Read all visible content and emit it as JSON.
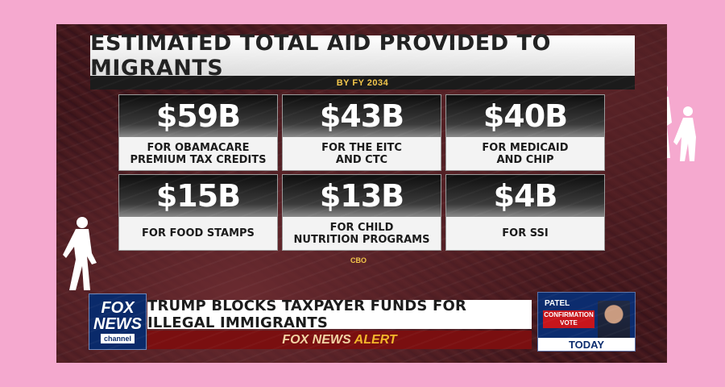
{
  "header": {
    "title": "ESTIMATED TOTAL AID PROVIDED TO MIGRANTS",
    "subtitle": "BY FY 2034"
  },
  "cards": [
    {
      "amount": "$59B",
      "label": "FOR OBAMACARE\nPREMIUM TAX CREDITS"
    },
    {
      "amount": "$43B",
      "label": "FOR THE EITC\nAND CTC"
    },
    {
      "amount": "$40B",
      "label": "FOR MEDICAID\nAND CHIP"
    },
    {
      "amount": "$15B",
      "label": "FOR FOOD STAMPS"
    },
    {
      "amount": "$13B",
      "label": "FOR CHILD\nNUTRITION PROGRAMS"
    },
    {
      "amount": "$4B",
      "label": "FOR SSI"
    }
  ],
  "source": "CBO",
  "logo": {
    "line1": "FOX",
    "line2": "NEWS",
    "line3": "channel"
  },
  "lower_third": {
    "headline": "TRUMP BLOCKS TAXPAYER FUNDS FOR ILLEGAL IMMIGRANTS",
    "alert_brand": "FOX NEWS",
    "alert_word": "ALERT"
  },
  "promo": {
    "name": "PATEL",
    "line1": "CONFIRMATION",
    "line2": "VOTE",
    "when": "TODAY"
  },
  "colors": {
    "background_pink": "#f5a9cf",
    "accent_gold": "#f3c64a",
    "alert_red": "#7a0f10",
    "fox_blue": "#0a2a6a"
  }
}
